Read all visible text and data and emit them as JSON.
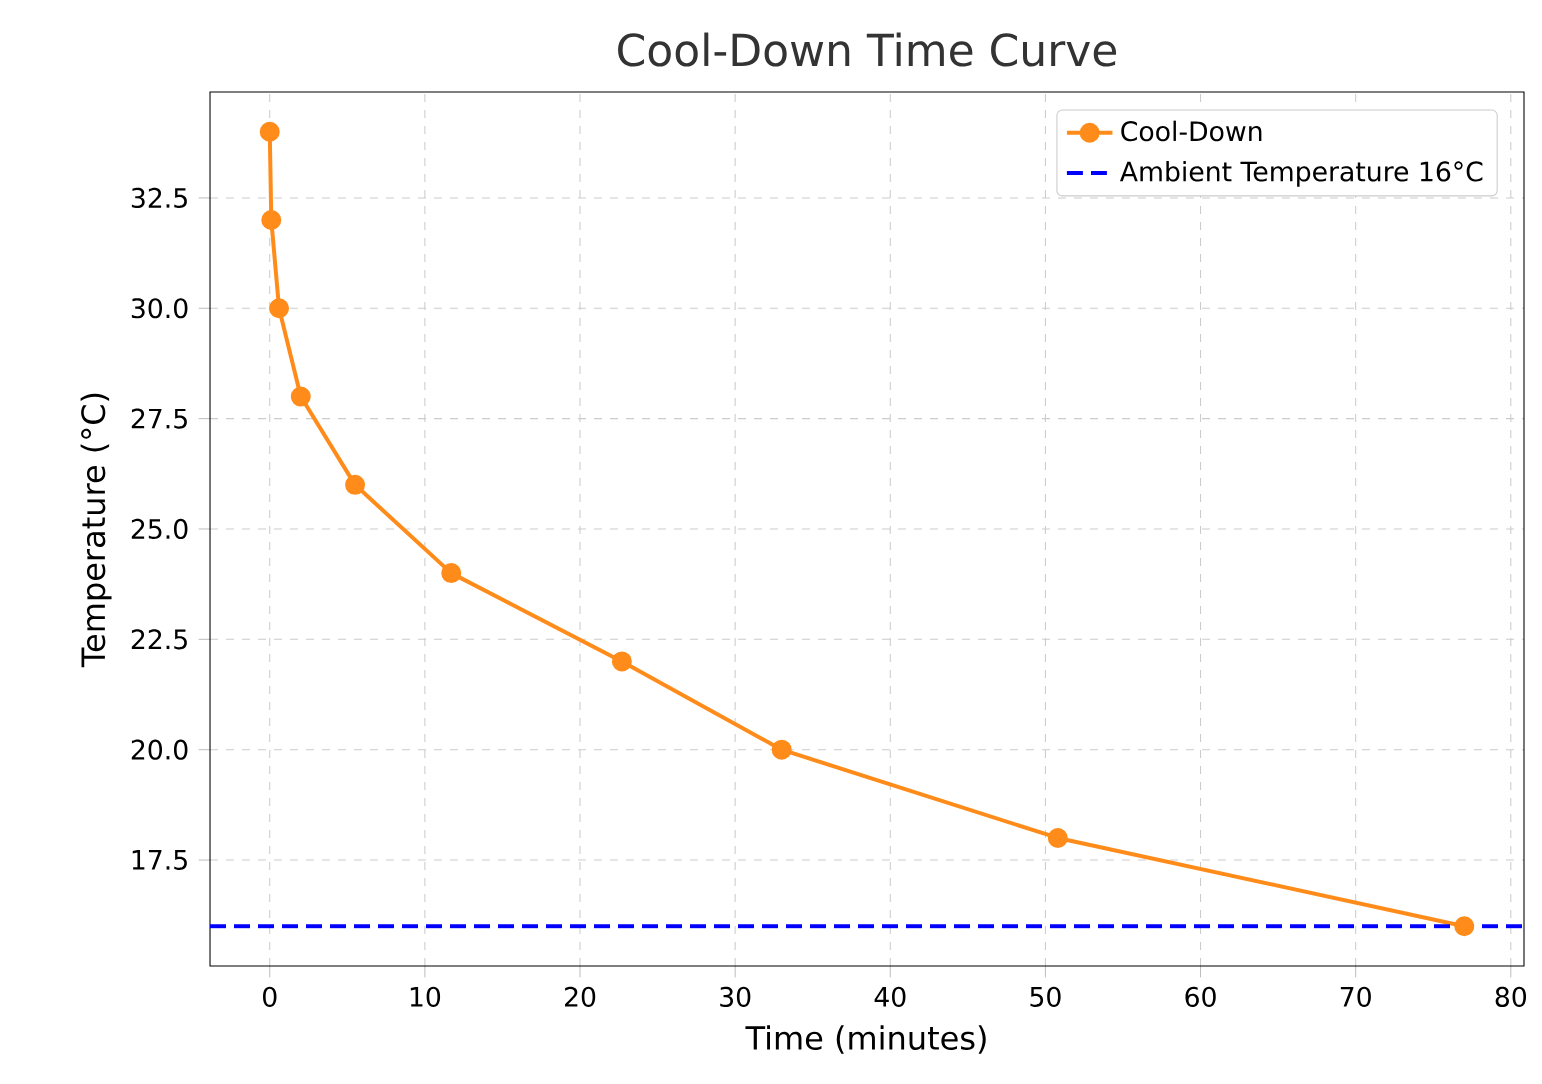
{
  "chart_data": {
    "type": "line",
    "title": "Cool-Down Time Curve",
    "xlabel": "Time (minutes)",
    "ylabel": "Temperature (°C)",
    "x": [
      0,
      0.1,
      0.6,
      2,
      5.5,
      11.7,
      22.7,
      33,
      50.8,
      77
    ],
    "series": [
      {
        "name": "Cool-Down",
        "color": "#ff8c1a",
        "values": [
          34,
          32,
          30,
          28,
          26,
          24,
          22,
          20,
          18,
          16
        ]
      }
    ],
    "xlim": [
      -3.85,
      80.85
    ],
    "ylim": [
      15.1,
      34.9
    ],
    "xticks": [
      0,
      10,
      20,
      30,
      40,
      50,
      60,
      70,
      80
    ],
    "yticks": [
      17.5,
      {
        "value": 20,
        "label": "20.0"
      },
      22.5,
      {
        "value": 25,
        "label": "25.0"
      },
      27.5,
      {
        "value": 30,
        "label": "30.0"
      },
      32.5
    ],
    "ref_lines": [
      {
        "axis": "y",
        "value": 16,
        "label": "Ambient Temperature 16°C",
        "color": "#0000ff",
        "line_style": "dashed"
      }
    ],
    "grid": true,
    "legend": "top right",
    "marker": "circle",
    "line_style": "solid"
  }
}
